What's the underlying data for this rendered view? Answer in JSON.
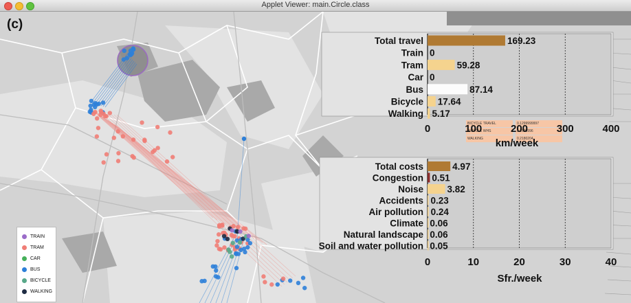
{
  "window": {
    "title": "Applet Viewer: main.Circle.class"
  },
  "panel_label": "(c)",
  "legend": {
    "items": [
      {
        "label": "TRAIN",
        "color": "#9b6cc9"
      },
      {
        "label": "TRAM",
        "color": "#f07d76"
      },
      {
        "label": "CAR",
        "color": "#46b05a"
      },
      {
        "label": "BUS",
        "color": "#2d7fd8"
      },
      {
        "label": "BICYCLE",
        "color": "#58a889"
      },
      {
        "label": "WALKING",
        "color": "#1f2d44"
      }
    ]
  },
  "map_tooltip": {
    "cells": [
      "BICYCLE TRAVEL",
      "0.1299999997",
      "BICYCLE WHS",
      "5.1699996",
      "WALKING",
      "0.2180204"
    ]
  },
  "chart_data": [
    {
      "type": "bar",
      "orientation": "horizontal",
      "categories": [
        "Total travel",
        "Train",
        "Tram",
        "Car",
        "Bus",
        "Bicycle",
        "Walking"
      ],
      "values": [
        169.23,
        0,
        59.28,
        0,
        87.14,
        17.64,
        5.17
      ],
      "value_labels": [
        "169.23",
        "0",
        "59.28",
        "0",
        "87.14",
        "17.64",
        "5.17"
      ],
      "bar_colors": [
        "#b07a33",
        "#f5d38e",
        "#f5d38e",
        "#f5d38e",
        "#fcfcfc",
        "#f5d38e",
        "#f5d38e"
      ],
      "xlim": [
        0,
        400
      ],
      "ticks": [
        0,
        100,
        200,
        300,
        400
      ],
      "xlabel": "km/week",
      "grid": "dotted vertical"
    },
    {
      "type": "bar",
      "orientation": "horizontal",
      "categories": [
        "Total costs",
        "Congestion",
        "Noise",
        "Accidents",
        "Air pollution",
        "Climate",
        "Natural landscape",
        "Soil and water pollution"
      ],
      "values": [
        4.97,
        0.51,
        3.82,
        0.23,
        0.24,
        0.06,
        0.06,
        0.05
      ],
      "value_labels": [
        "4.97",
        "0.51",
        "3.82",
        "0.23",
        "0.24",
        "0.06",
        "0.06",
        "0.05"
      ],
      "bar_colors": [
        "#b07a33",
        "#8a2b2b",
        "#f5d38e",
        "#f5d38e",
        "#f5d38e",
        "#f5d38e",
        "#f5d38e",
        "#f5d38e"
      ],
      "xlim": [
        0,
        40
      ],
      "ticks": [
        0,
        10,
        20,
        30,
        40
      ],
      "xlabel": "Sfr./week",
      "grid": "dotted vertical"
    }
  ]
}
